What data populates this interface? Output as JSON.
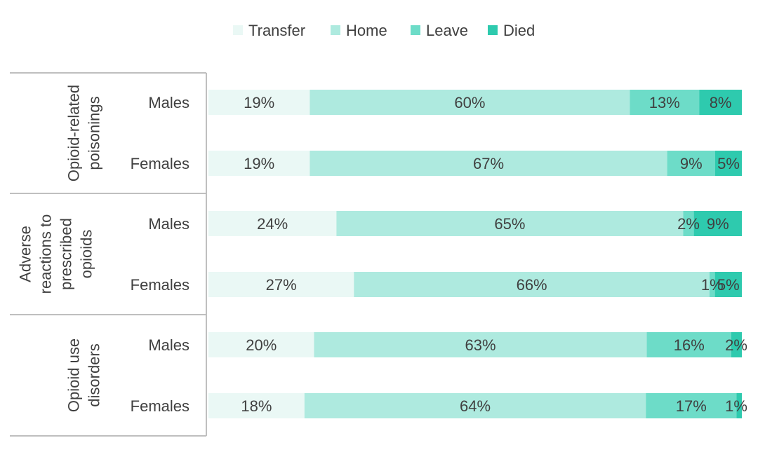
{
  "chart_data": {
    "type": "bar",
    "orientation": "horizontal",
    "stacked": true,
    "percent": true,
    "legend_position": "top",
    "series": [
      {
        "name": "Transfer",
        "color": "#eaf8f5",
        "values": [
          19,
          19,
          24,
          27,
          20,
          18
        ]
      },
      {
        "name": "Home",
        "color": "#aeeadf",
        "values": [
          60,
          67,
          65,
          66,
          63,
          64
        ]
      },
      {
        "name": "Leave",
        "color": "#6ddcc8",
        "values": [
          13,
          9,
          2,
          1,
          16,
          17
        ]
      },
      {
        "name": "Died",
        "color": "#2ecaae",
        "values": [
          8,
          5,
          9,
          5,
          2,
          1
        ]
      }
    ],
    "groups": [
      {
        "label_lines": [
          "Opioid-related",
          "poisonings"
        ],
        "rows": [
          {
            "label": "Males",
            "labels": [
              "19%",
              "60%",
              "13%",
              "8%"
            ]
          },
          {
            "label": "Females",
            "labels": [
              "19%",
              "67%",
              "9%",
              "5%"
            ]
          }
        ]
      },
      {
        "label_lines": [
          "Adverse",
          "reactions to",
          "prescribed",
          "opioids"
        ],
        "rows": [
          {
            "label": "Males",
            "labels": [
              "24%",
              "65%",
              "2%",
              "9%"
            ]
          },
          {
            "label": "Females",
            "labels": [
              "27%",
              "66%",
              "1%",
              "5%"
            ]
          }
        ]
      },
      {
        "label_lines": [
          "Opioid use",
          "disorders"
        ],
        "rows": [
          {
            "label": "Males",
            "labels": [
              "20%",
              "63%",
              "16%",
              "2%"
            ]
          },
          {
            "label": "Females",
            "labels": [
              "18%",
              "64%",
              "17%",
              "1%"
            ]
          }
        ]
      }
    ]
  }
}
